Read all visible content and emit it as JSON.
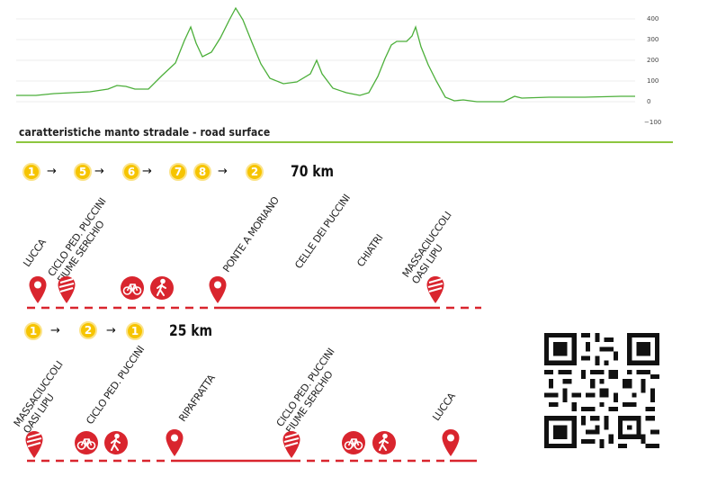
{
  "elevation": {
    "y_ticks": [
      "400",
      "300",
      "200",
      "100",
      "0",
      "−100"
    ],
    "line_color": "#4caf3a"
  },
  "section": {
    "title": "caratteristiche manto stradale - road surface",
    "rule_color": "#8dc63f"
  },
  "route1": {
    "sequence": [
      "1",
      "5",
      "6",
      "7",
      "8",
      "2"
    ],
    "arrow": "→",
    "distance": "70 km",
    "labels": [
      [
        "LUCCA"
      ],
      [
        "CICLO PED. PUCCINI",
        "FIUME SERCHIO"
      ],
      [
        "PONTE A MORIANO"
      ],
      [
        "CELLE DEI PUCCINI"
      ],
      [
        "CHIATRI"
      ],
      [
        "MASSACIUCCOLI",
        "OASI LIPU"
      ]
    ]
  },
  "route2": {
    "sequence": [
      "1",
      "2",
      "1"
    ],
    "arrow": "→",
    "distance": "25 km",
    "labels": [
      [
        "MASSACIUCCOLI",
        "OASI LIPU"
      ],
      [
        "CICLO PED. PUCCINI"
      ],
      [
        "RIPAFRATTA"
      ],
      [
        "CICLO PED. PUCCINI",
        "FIUME SERCHIO"
      ],
      [
        "LUCCA"
      ]
    ]
  },
  "colors": {
    "accent_red": "#d9252e",
    "number_yellow": "#f6c400",
    "green": "#8dc63f"
  },
  "icons": [
    "location-pin-icon",
    "bicycle-lane-icon",
    "bicycle-icon",
    "pedestrian-icon",
    "qr-code"
  ]
}
